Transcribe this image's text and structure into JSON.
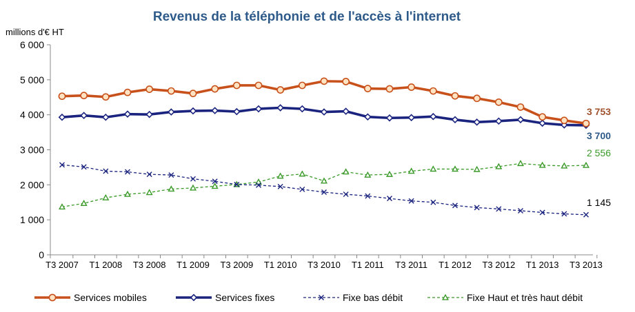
{
  "chart_data": {
    "type": "line",
    "title": "Revenus de la téléphonie et de l'accès à l'internet",
    "ylabel": "millions d'€ HT",
    "xlabel": "",
    "ylim": [
      0,
      6000
    ],
    "yticks": [
      0,
      1000,
      2000,
      3000,
      4000,
      5000,
      6000
    ],
    "ytick_labels": [
      "0",
      "1 000",
      "2 000",
      "3 000",
      "4 000",
      "5 000",
      "6 000"
    ],
    "x": [
      "T3 2007",
      "T4 2007",
      "T1 2008",
      "T2 2008",
      "T3 2008",
      "T4 2008",
      "T1 2009",
      "T2 2009",
      "T3 2009",
      "T4 2009",
      "T1 2010",
      "T2 2010",
      "T3 2010",
      "T4 2010",
      "T1 2011",
      "T2 2011",
      "T3 2011",
      "T4 2011",
      "T1 2012",
      "T2 2012",
      "T3 2012",
      "T4 2012",
      "T1 2013",
      "T2 2013",
      "T3 2013"
    ],
    "xtick_labels": [
      "T3 2007",
      "T1 2008",
      "T3 2008",
      "T1 2009",
      "T3 2009",
      "T1 2010",
      "T3 2010",
      "T1 2011",
      "T3 2011",
      "T1 2012",
      "T3 2012",
      "T1 2013",
      "T3 2013"
    ],
    "grid": false,
    "legend_position": "bottom",
    "series": [
      {
        "name": "Services mobiles",
        "color": "#C8511B",
        "marker": "circle",
        "line_style": "solid-thick",
        "end_label": "3 753",
        "values": [
          4530,
          4550,
          4510,
          4640,
          4730,
          4680,
          4610,
          4740,
          4840,
          4840,
          4710,
          4840,
          4960,
          4950,
          4750,
          4740,
          4790,
          4680,
          4540,
          4470,
          4360,
          4220,
          3940,
          3840,
          3753
        ]
      },
      {
        "name": "Services fixes",
        "color": "#1A237E",
        "marker": "diamond",
        "line_style": "solid-thick",
        "end_label": "3 700",
        "values": [
          3930,
          3980,
          3930,
          4020,
          4010,
          4080,
          4110,
          4120,
          4090,
          4170,
          4200,
          4170,
          4080,
          4100,
          3940,
          3910,
          3920,
          3950,
          3860,
          3790,
          3820,
          3860,
          3760,
          3710,
          3700
        ]
      },
      {
        "name": "Fixe bas débit",
        "color": "#1A237E",
        "marker": "x",
        "line_style": "dashed",
        "end_label": "1 145",
        "values": [
          2570,
          2510,
          2390,
          2370,
          2300,
          2280,
          2170,
          2100,
          2010,
          1990,
          1950,
          1870,
          1790,
          1730,
          1680,
          1610,
          1540,
          1500,
          1410,
          1350,
          1310,
          1260,
          1210,
          1170,
          1145
        ]
      },
      {
        "name": "Fixe Haut et très haut débit",
        "color": "#3A9A28",
        "marker": "triangle",
        "line_style": "dashed",
        "end_label": "2 556",
        "values": [
          1370,
          1470,
          1630,
          1730,
          1780,
          1880,
          1910,
          1960,
          2010,
          2080,
          2250,
          2310,
          2110,
          2370,
          2280,
          2300,
          2390,
          2450,
          2450,
          2440,
          2520,
          2610,
          2560,
          2540,
          2556
        ]
      }
    ]
  }
}
